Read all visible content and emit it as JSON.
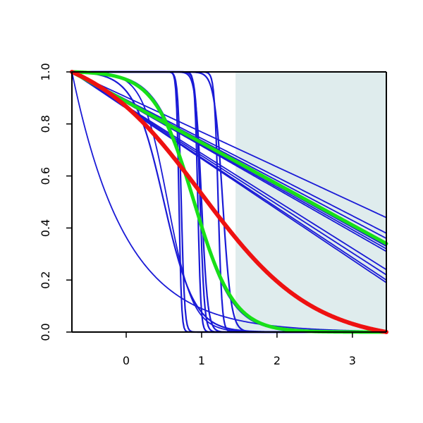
{
  "chart_data": {
    "type": "line",
    "title": "",
    "xlabel": "",
    "ylabel": "",
    "xlim": [
      -0.72,
      3.45
    ],
    "ylim": [
      0,
      1
    ],
    "x_ticks": [
      0,
      1,
      2,
      3
    ],
    "x_tick_labels": [
      "0",
      "1",
      "2",
      "3"
    ],
    "y_ticks": [
      0,
      0.2,
      0.4,
      0.6,
      0.8,
      1
    ],
    "y_tick_labels": [
      "0.0",
      "0.2",
      "0.4",
      "0.6",
      "0.8",
      "1.0"
    ],
    "grid": false,
    "legend": "none",
    "shaded_region": {
      "x_from": 1.45,
      "x_to": 3.45,
      "y_from": 0,
      "y_to": 1
    },
    "colors": {
      "background": "#ffffff",
      "shade": "#dfeced",
      "blue": "#1a1ad6",
      "green": "#18e018",
      "red": "#ee1111",
      "axis": "#000000"
    },
    "curves": {
      "blue_linear": [
        {
          "end": 0.44
        },
        {
          "end": 0.38
        },
        {
          "end": 0.36
        },
        {
          "end": 0.33
        },
        {
          "end": 0.32
        },
        {
          "end": 0.31
        },
        {
          "end": 0.24
        },
        {
          "end": 0.22
        },
        {
          "end": 0.2
        },
        {
          "end": 0.19
        }
      ],
      "blue_sigmoid": [
        {
          "center": 0.7,
          "steepness": 60
        },
        {
          "center": 0.73,
          "steepness": 45
        },
        {
          "center": 0.95,
          "steepness": 50
        },
        {
          "center": 0.98,
          "steepness": 35
        },
        {
          "center": 1.0,
          "steepness": 25
        },
        {
          "center": 1.22,
          "steepness": 40
        },
        {
          "center": 1.28,
          "steepness": 18
        },
        {
          "center": 0.5,
          "steepness": 5
        }
      ],
      "blue_smooth": [
        {
          "type": "sigmoid",
          "center": 0.55,
          "steepness": 6
        },
        {
          "type": "sigmoid",
          "center": 0.9,
          "steepness": 4
        },
        {
          "type": "exp",
          "rate": 1.4
        }
      ],
      "green": [
        {
          "type": "linear",
          "end": 0.34
        },
        {
          "type": "sigmoid",
          "center": 0.9,
          "steepness": 3.8
        }
      ],
      "red": [
        {
          "type": "sigmoid",
          "center": 1.0,
          "steepness": 1.35
        }
      ]
    }
  }
}
